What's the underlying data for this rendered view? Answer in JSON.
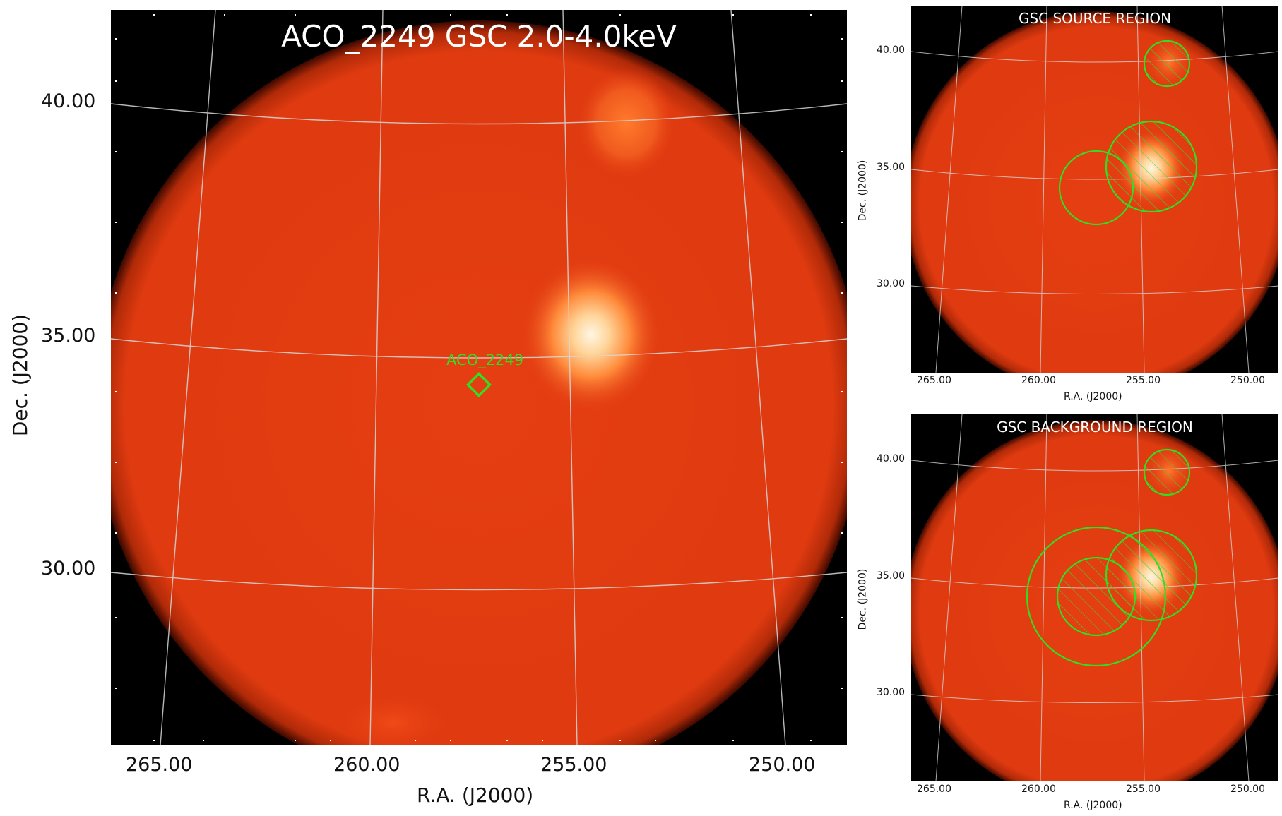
{
  "main": {
    "title": "ACO_2249 GSC 2.0-4.0keV",
    "xlabel": "R.A. (J2000)",
    "ylabel": "Dec. (J2000)",
    "x_ticks": [
      "265.00",
      "260.00",
      "255.00",
      "250.00"
    ],
    "y_ticks": [
      "40.00",
      "35.00",
      "30.00"
    ],
    "marker_label": "ACO_2249"
  },
  "source_panel": {
    "title": "GSC SOURCE REGION",
    "xlabel": "R.A. (J2000)",
    "ylabel": "Dec. (J2000)",
    "x_ticks": [
      "265.00",
      "260.00",
      "255.00",
      "250.00"
    ],
    "y_ticks": [
      "40.00",
      "35.00",
      "30.00"
    ]
  },
  "background_panel": {
    "title": "GSC BACKGROUND REGION",
    "xlabel": "R.A. (J2000)",
    "ylabel": "Dec. (J2000)",
    "x_ticks": [
      "265.00",
      "260.00",
      "255.00",
      "250.00"
    ],
    "y_ticks": [
      "40.00",
      "35.00",
      "30.00"
    ]
  },
  "colors": {
    "disk": "#e23b12",
    "background": "#000000",
    "region": "#33dd22",
    "grid": "#d8d8d8"
  }
}
